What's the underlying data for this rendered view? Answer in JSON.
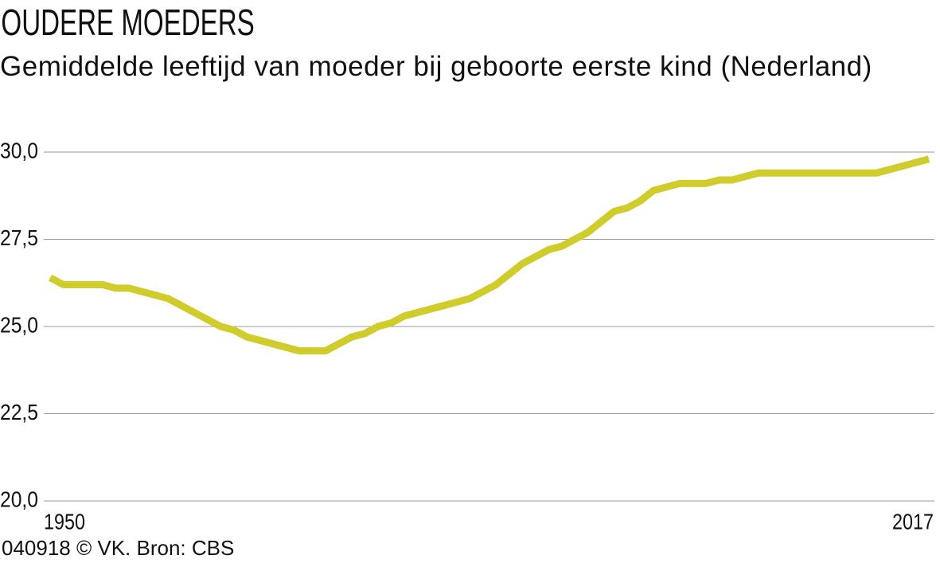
{
  "chart_data": {
    "type": "line",
    "title": "OUDERE MOEDERS",
    "subtitle": "Gemiddelde leeftijd van moeder bij geboorte eerste kind (Nederland)",
    "source": "040918 © VK. Bron: CBS",
    "x": [
      1950,
      1951,
      1954,
      1955,
      1956,
      1959,
      1963,
      1964,
      1965,
      1969,
      1971,
      1973,
      1974,
      1975,
      1976,
      1977,
      1979,
      1982,
      1984,
      1986,
      1988,
      1989,
      1991,
      1993,
      1994,
      1995,
      1996,
      1998,
      2000,
      2001,
      2002,
      2004,
      2013,
      2017
    ],
    "series": [
      {
        "name": "Gemiddelde leeftijd",
        "color": "#cfcc2b",
        "values": [
          26.4,
          26.2,
          26.2,
          26.1,
          26.1,
          25.8,
          25.0,
          24.9,
          24.7,
          24.3,
          24.3,
          24.7,
          24.8,
          25.0,
          25.1,
          25.3,
          25.5,
          25.8,
          26.2,
          26.8,
          27.2,
          27.3,
          27.7,
          28.3,
          28.4,
          28.6,
          28.9,
          29.1,
          29.1,
          29.2,
          29.2,
          29.4,
          29.4,
          29.8
        ]
      }
    ],
    "xlim": [
      1950,
      2017
    ],
    "xticks": [
      1950,
      2017
    ],
    "ylim": [
      20,
      30
    ],
    "yticks": [
      {
        "value": 20,
        "label": "20,0"
      },
      {
        "value": 22.5,
        "label": "22,5"
      },
      {
        "value": 25,
        "label": "25,0"
      },
      {
        "value": 27.5,
        "label": "27,5"
      },
      {
        "value": 30,
        "label": "30,0"
      }
    ],
    "grid": true
  }
}
